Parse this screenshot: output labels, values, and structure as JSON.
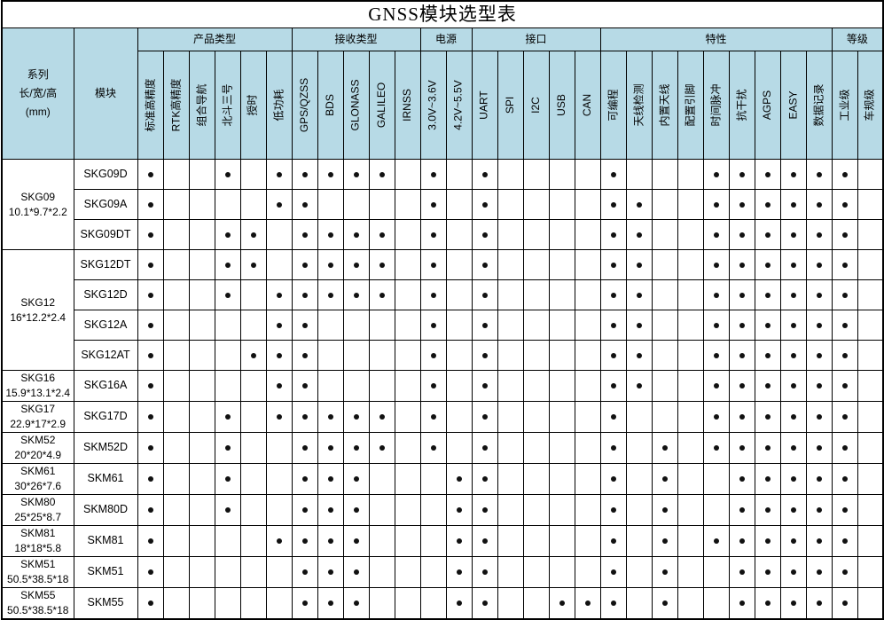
{
  "title": "GNSS模块选型表",
  "mark_glyph": "●",
  "colors": {
    "header_bg": "#b7dae6",
    "border": "#000000",
    "dot": "#111111",
    "page_bg": "#ffffff"
  },
  "corner": {
    "series_lines": [
      "系列",
      "长/宽/高",
      "(mm)"
    ],
    "module": "模块"
  },
  "groups": [
    {
      "label": "产品类型",
      "cols": [
        "标准高精度",
        "RTK高精度",
        "组合导航",
        "北斗三号",
        "授时",
        "低功耗"
      ]
    },
    {
      "label": "接收类型",
      "cols": [
        "GPS/QZSS",
        "BDS",
        "GLONASS",
        "GALILEO",
        "IRNSS"
      ]
    },
    {
      "label": "电源",
      "cols": [
        "3.0V~3.6V",
        "4.2V~5.5V"
      ]
    },
    {
      "label": "接口",
      "cols": [
        "UART",
        "SPI",
        "I2C",
        "USB",
        "CAN"
      ]
    },
    {
      "label": "特性",
      "cols": [
        "可编程",
        "天线检测",
        "内置天线",
        "配置引脚",
        "时间脉冲",
        "抗干扰",
        "AGPS",
        "EASY",
        "数据记录"
      ]
    },
    {
      "label": "等级",
      "cols": [
        "工业级",
        "车规级"
      ]
    }
  ],
  "series": [
    {
      "name": "SKG09",
      "size": "10.1*9.7*2.2",
      "modules": [
        {
          "name": "SKG09D",
          "marks": [
            "标准高精度",
            "北斗三号",
            "低功耗",
            "GPS/QZSS",
            "BDS",
            "GLONASS",
            "GALILEO",
            "3.0V~3.6V",
            "UART",
            "可编程",
            "时间脉冲",
            "抗干扰",
            "AGPS",
            "EASY",
            "数据记录",
            "工业级"
          ]
        },
        {
          "name": "SKG09A",
          "marks": [
            "标准高精度",
            "低功耗",
            "GPS/QZSS",
            "3.0V~3.6V",
            "UART",
            "可编程",
            "天线检测",
            "时间脉冲",
            "抗干扰",
            "AGPS",
            "EASY",
            "数据记录",
            "工业级"
          ]
        },
        {
          "name": "SKG09DT",
          "marks": [
            "标准高精度",
            "北斗三号",
            "授时",
            "GPS/QZSS",
            "BDS",
            "GLONASS",
            "GALILEO",
            "3.0V~3.6V",
            "UART",
            "可编程",
            "天线检测",
            "时间脉冲",
            "抗干扰",
            "AGPS",
            "EASY",
            "数据记录",
            "工业级"
          ]
        }
      ]
    },
    {
      "name": "SKG12",
      "size": "16*12.2*2.4",
      "modules": [
        {
          "name": "SKG12DT",
          "marks": [
            "标准高精度",
            "北斗三号",
            "授时",
            "GPS/QZSS",
            "BDS",
            "GLONASS",
            "GALILEO",
            "3.0V~3.6V",
            "UART",
            "可编程",
            "天线检测",
            "时间脉冲",
            "抗干扰",
            "AGPS",
            "EASY",
            "数据记录",
            "工业级"
          ]
        },
        {
          "name": "SKG12D",
          "marks": [
            "标准高精度",
            "北斗三号",
            "低功耗",
            "GPS/QZSS",
            "BDS",
            "GLONASS",
            "GALILEO",
            "3.0V~3.6V",
            "UART",
            "可编程",
            "天线检测",
            "时间脉冲",
            "抗干扰",
            "AGPS",
            "EASY",
            "数据记录",
            "工业级"
          ]
        },
        {
          "name": "SKG12A",
          "marks": [
            "标准高精度",
            "低功耗",
            "GPS/QZSS",
            "3.0V~3.6V",
            "UART",
            "可编程",
            "天线检测",
            "时间脉冲",
            "抗干扰",
            "AGPS",
            "EASY",
            "数据记录",
            "工业级"
          ]
        },
        {
          "name": "SKG12AT",
          "marks": [
            "标准高精度",
            "授时",
            "低功耗",
            "GPS/QZSS",
            "3.0V~3.6V",
            "UART",
            "可编程",
            "天线检测",
            "时间脉冲",
            "抗干扰",
            "AGPS",
            "EASY",
            "数据记录",
            "工业级"
          ]
        }
      ]
    },
    {
      "name": "SKG16",
      "size": "15.9*13.1*2.4",
      "modules": [
        {
          "name": "SKG16A",
          "marks": [
            "标准高精度",
            "低功耗",
            "GPS/QZSS",
            "3.0V~3.6V",
            "UART",
            "可编程",
            "天线检测",
            "时间脉冲",
            "抗干扰",
            "AGPS",
            "EASY",
            "数据记录",
            "工业级"
          ]
        }
      ]
    },
    {
      "name": "SKG17",
      "size": "22.9*17*2.9",
      "modules": [
        {
          "name": "SKG17D",
          "marks": [
            "标准高精度",
            "北斗三号",
            "低功耗",
            "GPS/QZSS",
            "BDS",
            "GLONASS",
            "GALILEO",
            "3.0V~3.6V",
            "UART",
            "可编程",
            "时间脉冲",
            "抗干扰",
            "AGPS",
            "EASY",
            "数据记录",
            "工业级"
          ]
        }
      ]
    },
    {
      "name": "SKM52",
      "size": "20*20*4.9",
      "modules": [
        {
          "name": "SKM52D",
          "marks": [
            "标准高精度",
            "北斗三号",
            "GPS/QZSS",
            "BDS",
            "GLONASS",
            "GALILEO",
            "3.0V~3.6V",
            "UART",
            "可编程",
            "内置天线",
            "时间脉冲",
            "抗干扰",
            "AGPS",
            "EASY",
            "数据记录",
            "工业级"
          ]
        }
      ]
    },
    {
      "name": "SKM61",
      "size": "30*26*7.6",
      "modules": [
        {
          "name": "SKM61",
          "marks": [
            "标准高精度",
            "北斗三号",
            "GPS/QZSS",
            "BDS",
            "GLONASS",
            "4.2V~5.5V",
            "UART",
            "可编程",
            "内置天线",
            "抗干扰",
            "AGPS",
            "EASY",
            "数据记录",
            "工业级"
          ]
        }
      ]
    },
    {
      "name": "SKM80",
      "size": "25*25*8.7",
      "modules": [
        {
          "name": "SKM80D",
          "marks": [
            "标准高精度",
            "北斗三号",
            "GPS/QZSS",
            "BDS",
            "GLONASS",
            "4.2V~5.5V",
            "UART",
            "可编程",
            "内置天线",
            "抗干扰",
            "AGPS",
            "EASY",
            "数据记录",
            "工业级"
          ]
        }
      ]
    },
    {
      "name": "SKM81",
      "size": "18*18*5.8",
      "modules": [
        {
          "name": "SKM81",
          "marks": [
            "标准高精度",
            "低功耗",
            "GPS/QZSS",
            "BDS",
            "GLONASS",
            "4.2V~5.5V",
            "UART",
            "可编程",
            "内置天线",
            "时间脉冲",
            "抗干扰",
            "AGPS",
            "EASY",
            "数据记录",
            "工业级"
          ]
        }
      ]
    },
    {
      "name": "SKM51",
      "size": "50.5*38.5*18",
      "modules": [
        {
          "name": "SKM51",
          "marks": [
            "标准高精度",
            "GPS/QZSS",
            "BDS",
            "GLONASS",
            "4.2V~5.5V",
            "UART",
            "可编程",
            "内置天线",
            "抗干扰",
            "AGPS",
            "EASY",
            "数据记录",
            "工业级"
          ]
        }
      ]
    },
    {
      "name": "SKM55",
      "size": "50.5*38.5*18",
      "modules": [
        {
          "name": "SKM55",
          "marks": [
            "标准高精度",
            "GPS/QZSS",
            "BDS",
            "GLONASS",
            "4.2V~5.5V",
            "UART",
            "USB",
            "CAN",
            "可编程",
            "内置天线",
            "抗干扰",
            "AGPS",
            "EASY",
            "数据记录",
            "工业级"
          ]
        }
      ]
    }
  ]
}
